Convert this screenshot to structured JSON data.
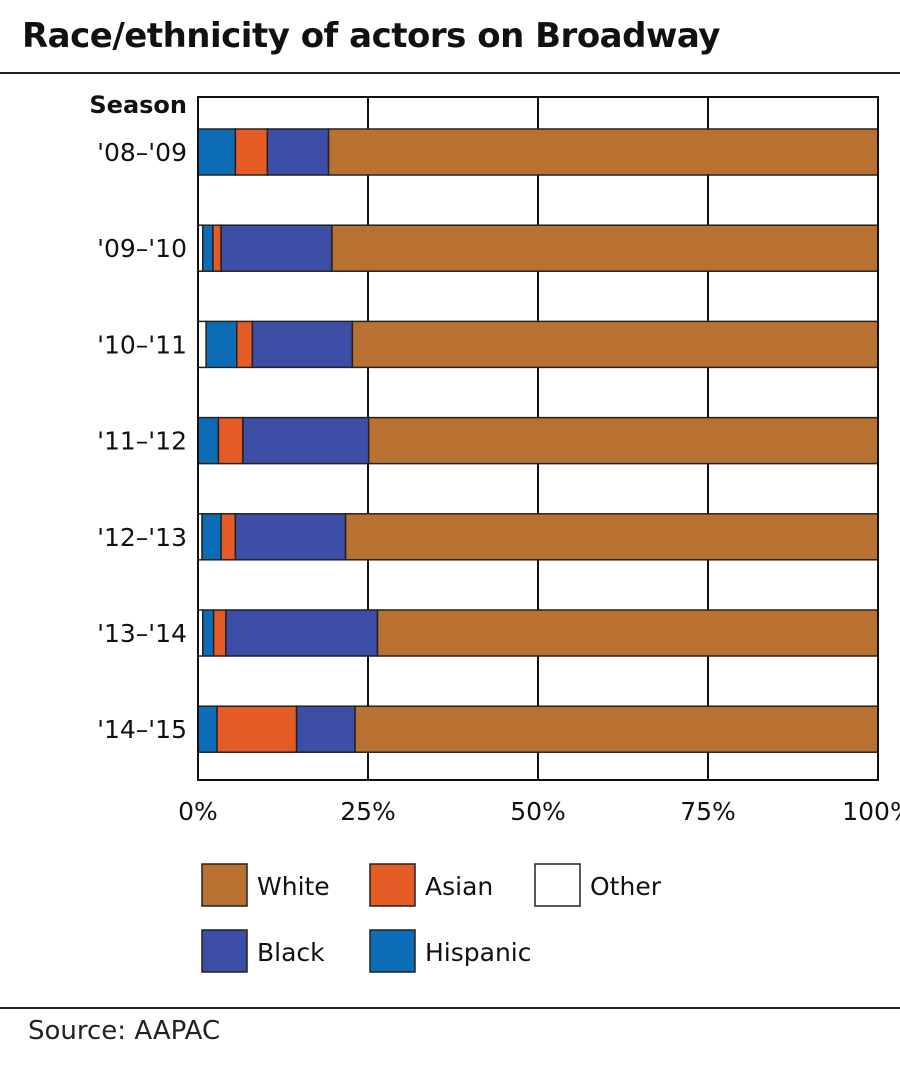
{
  "title": "Race/ethnicity of actors on Broadway",
  "source": "Source: AAPAC",
  "chart_data": {
    "type": "bar",
    "orientation": "horizontal",
    "stacked": true,
    "title": "Race/ethnicity of actors on Broadway",
    "ylabel": "Season",
    "xlabel": "",
    "categories": [
      "'08–'09",
      "'09–'10",
      "'10–'11",
      "'11–'12",
      "'12–'13",
      "'13–'14",
      "'14–'15"
    ],
    "xlim": [
      0,
      100
    ],
    "x_ticks": [
      "0%",
      "25%",
      "50%",
      "75%",
      "100%"
    ],
    "grid": true,
    "series": [
      {
        "name": "Other",
        "color": "#ffffff",
        "values": [
          0.0,
          0.7,
          1.2,
          0.0,
          0.6,
          0.7,
          0.0
        ]
      },
      {
        "name": "Hispanic",
        "color": "#0d6cb6",
        "values": [
          5.5,
          1.5,
          4.5,
          3.0,
          2.8,
          1.6,
          2.8
        ]
      },
      {
        "name": "Asian",
        "color": "#e55b25",
        "values": [
          4.7,
          1.2,
          2.3,
          3.6,
          2.1,
          1.8,
          11.7
        ]
      },
      {
        "name": "Black",
        "color": "#3c4ea5",
        "values": [
          9.0,
          16.3,
          14.7,
          18.5,
          16.2,
          22.3,
          8.6
        ]
      },
      {
        "name": "White",
        "color": "#b87130",
        "values": [
          80.8,
          80.3,
          77.3,
          74.9,
          78.3,
          73.6,
          76.9
        ]
      }
    ],
    "legend": {
      "placement": "bottom",
      "items": [
        {
          "name": "White",
          "color": "#b87130"
        },
        {
          "name": "Asian",
          "color": "#e55b25"
        },
        {
          "name": "Other",
          "color": "#ffffff"
        },
        {
          "name": "Black",
          "color": "#3c4ea5"
        },
        {
          "name": "Hispanic",
          "color": "#0d6cb6"
        }
      ]
    }
  }
}
